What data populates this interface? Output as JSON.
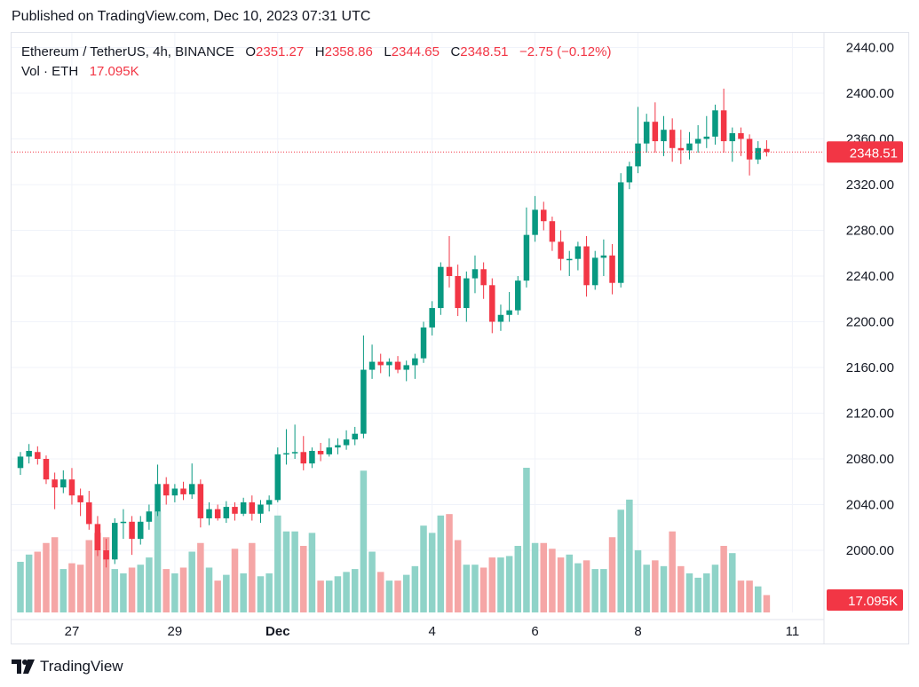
{
  "published": "Published on TradingView.com, Dec 10, 2023 07:31 UTC",
  "legend": {
    "symbol": "Ethereum / TetherUS, 4h, BINANCE",
    "o_label": "O",
    "o_value": "2351.27",
    "h_label": "H",
    "h_value": "2358.86",
    "l_label": "L",
    "l_value": "2344.65",
    "c_label": "C",
    "c_value": "2348.51",
    "change": "−2.75 (−0.12%)",
    "vol_label": "Vol · ETH",
    "vol_value": "17.095K"
  },
  "price_tag": "2348.51",
  "volume_tag": "17.095K",
  "footer": {
    "brand": "TradingView"
  },
  "colors": {
    "up": "#089981",
    "down": "#f23645",
    "up_vol": "#8fd3c8",
    "down_vol": "#f5a6a6"
  },
  "chart_data": {
    "type": "candlestick",
    "interval": "4h",
    "y_ticks": [
      "2440.00",
      "2400.00",
      "2360.00",
      "2320.00",
      "2280.00",
      "2240.00",
      "2200.00",
      "2160.00",
      "2120.00",
      "2080.00",
      "2040.00",
      "2000.00"
    ],
    "ylim": [
      1960,
      2460
    ],
    "x_ticks": [
      {
        "label": "27",
        "index": 6
      },
      {
        "label": "29",
        "index": 18
      },
      {
        "label": "Dec",
        "index": 30
      },
      {
        "label": "4",
        "index": 48
      },
      {
        "label": "6",
        "index": 60
      },
      {
        "label": "8",
        "index": 72
      },
      {
        "label": "11",
        "index": 90
      }
    ],
    "last_price": 2348.51,
    "candles": [
      {
        "o": 2072,
        "h": 2086,
        "l": 2066,
        "c": 2082,
        "v": 0.35
      },
      {
        "o": 2082,
        "h": 2093,
        "l": 2076,
        "c": 2087,
        "v": 0.4
      },
      {
        "o": 2086,
        "h": 2091,
        "l": 2075,
        "c": 2080,
        "v": 0.42
      },
      {
        "o": 2080,
        "h": 2083,
        "l": 2058,
        "c": 2062,
        "v": 0.48
      },
      {
        "o": 2062,
        "h": 2068,
        "l": 2036,
        "c": 2055,
        "v": 0.52
      },
      {
        "o": 2055,
        "h": 2070,
        "l": 2050,
        "c": 2062,
        "v": 0.3
      },
      {
        "o": 2062,
        "h": 2072,
        "l": 2040,
        "c": 2048,
        "v": 0.34
      },
      {
        "o": 2048,
        "h": 2054,
        "l": 2030,
        "c": 2042,
        "v": 0.33
      },
      {
        "o": 2042,
        "h": 2052,
        "l": 2018,
        "c": 2023,
        "v": 0.5
      },
      {
        "o": 2023,
        "h": 2030,
        "l": 1995,
        "c": 2000,
        "v": 0.55
      },
      {
        "o": 2000,
        "h": 2010,
        "l": 1985,
        "c": 1992,
        "v": 0.52
      },
      {
        "o": 1992,
        "h": 2028,
        "l": 1988,
        "c": 2024,
        "v": 0.3
      },
      {
        "o": 2024,
        "h": 2036,
        "l": 2010,
        "c": 2025,
        "v": 0.27
      },
      {
        "o": 2025,
        "h": 2030,
        "l": 1996,
        "c": 2010,
        "v": 0.31
      },
      {
        "o": 2010,
        "h": 2030,
        "l": 2005,
        "c": 2025,
        "v": 0.33
      },
      {
        "o": 2025,
        "h": 2040,
        "l": 2018,
        "c": 2034,
        "v": 0.38
      },
      {
        "o": 2034,
        "h": 2075,
        "l": 2030,
        "c": 2058,
        "v": 0.7
      },
      {
        "o": 2058,
        "h": 2064,
        "l": 2040,
        "c": 2048,
        "v": 0.3
      },
      {
        "o": 2048,
        "h": 2058,
        "l": 2042,
        "c": 2054,
        "v": 0.27
      },
      {
        "o": 2054,
        "h": 2060,
        "l": 2044,
        "c": 2049,
        "v": 0.31
      },
      {
        "o": 2049,
        "h": 2076,
        "l": 2045,
        "c": 2058,
        "v": 0.42
      },
      {
        "o": 2058,
        "h": 2062,
        "l": 2020,
        "c": 2028,
        "v": 0.48
      },
      {
        "o": 2028,
        "h": 2042,
        "l": 2022,
        "c": 2036,
        "v": 0.31
      },
      {
        "o": 2036,
        "h": 2040,
        "l": 2026,
        "c": 2028,
        "v": 0.22
      },
      {
        "o": 2028,
        "h": 2043,
        "l": 2024,
        "c": 2038,
        "v": 0.26
      },
      {
        "o": 2038,
        "h": 2042,
        "l": 2026,
        "c": 2032,
        "v": 0.44
      },
      {
        "o": 2032,
        "h": 2046,
        "l": 2030,
        "c": 2042,
        "v": 0.27
      },
      {
        "o": 2042,
        "h": 2048,
        "l": 2026,
        "c": 2032,
        "v": 0.48
      },
      {
        "o": 2032,
        "h": 2044,
        "l": 2024,
        "c": 2040,
        "v": 0.25
      },
      {
        "o": 2040,
        "h": 2048,
        "l": 2034,
        "c": 2044,
        "v": 0.27
      },
      {
        "o": 2044,
        "h": 2090,
        "l": 2042,
        "c": 2084,
        "v": 0.67
      },
      {
        "o": 2084,
        "h": 2106,
        "l": 2075,
        "c": 2085,
        "v": 0.56
      },
      {
        "o": 2085,
        "h": 2110,
        "l": 2080,
        "c": 2086,
        "v": 0.56
      },
      {
        "o": 2086,
        "h": 2100,
        "l": 2070,
        "c": 2076,
        "v": 0.46
      },
      {
        "o": 2076,
        "h": 2090,
        "l": 2072,
        "c": 2087,
        "v": 0.55
      },
      {
        "o": 2087,
        "h": 2094,
        "l": 2078,
        "c": 2084,
        "v": 0.22
      },
      {
        "o": 2084,
        "h": 2098,
        "l": 2082,
        "c": 2090,
        "v": 0.22
      },
      {
        "o": 2090,
        "h": 2098,
        "l": 2084,
        "c": 2092,
        "v": 0.25
      },
      {
        "o": 2092,
        "h": 2105,
        "l": 2088,
        "c": 2097,
        "v": 0.28
      },
      {
        "o": 2097,
        "h": 2108,
        "l": 2092,
        "c": 2102,
        "v": 0.3
      },
      {
        "o": 2102,
        "h": 2188,
        "l": 2098,
        "c": 2158,
        "v": 0.98
      },
      {
        "o": 2158,
        "h": 2180,
        "l": 2150,
        "c": 2165,
        "v": 0.42
      },
      {
        "o": 2165,
        "h": 2172,
        "l": 2155,
        "c": 2162,
        "v": 0.28
      },
      {
        "o": 2162,
        "h": 2168,
        "l": 2152,
        "c": 2165,
        "v": 0.22
      },
      {
        "o": 2165,
        "h": 2170,
        "l": 2155,
        "c": 2158,
        "v": 0.22
      },
      {
        "o": 2158,
        "h": 2166,
        "l": 2148,
        "c": 2162,
        "v": 0.26
      },
      {
        "o": 2162,
        "h": 2172,
        "l": 2150,
        "c": 2168,
        "v": 0.32
      },
      {
        "o": 2168,
        "h": 2200,
        "l": 2164,
        "c": 2195,
        "v": 0.6
      },
      {
        "o": 2195,
        "h": 2218,
        "l": 2188,
        "c": 2212,
        "v": 0.55
      },
      {
        "o": 2212,
        "h": 2252,
        "l": 2206,
        "c": 2248,
        "v": 0.67
      },
      {
        "o": 2248,
        "h": 2275,
        "l": 2230,
        "c": 2240,
        "v": 0.68
      },
      {
        "o": 2240,
        "h": 2250,
        "l": 2205,
        "c": 2212,
        "v": 0.5
      },
      {
        "o": 2212,
        "h": 2244,
        "l": 2200,
        "c": 2238,
        "v": 0.33
      },
      {
        "o": 2238,
        "h": 2258,
        "l": 2225,
        "c": 2246,
        "v": 0.33
      },
      {
        "o": 2246,
        "h": 2252,
        "l": 2220,
        "c": 2232,
        "v": 0.31
      },
      {
        "o": 2232,
        "h": 2238,
        "l": 2190,
        "c": 2200,
        "v": 0.38
      },
      {
        "o": 2200,
        "h": 2215,
        "l": 2192,
        "c": 2206,
        "v": 0.38
      },
      {
        "o": 2206,
        "h": 2226,
        "l": 2200,
        "c": 2210,
        "v": 0.39
      },
      {
        "o": 2210,
        "h": 2240,
        "l": 2206,
        "c": 2236,
        "v": 0.46
      },
      {
        "o": 2236,
        "h": 2300,
        "l": 2230,
        "c": 2276,
        "v": 1.0
      },
      {
        "o": 2276,
        "h": 2310,
        "l": 2270,
        "c": 2298,
        "v": 0.48
      },
      {
        "o": 2298,
        "h": 2305,
        "l": 2280,
        "c": 2288,
        "v": 0.48
      },
      {
        "o": 2288,
        "h": 2292,
        "l": 2262,
        "c": 2270,
        "v": 0.44
      },
      {
        "o": 2270,
        "h": 2280,
        "l": 2245,
        "c": 2255,
        "v": 0.38
      },
      {
        "o": 2255,
        "h": 2262,
        "l": 2240,
        "c": 2255,
        "v": 0.4
      },
      {
        "o": 2255,
        "h": 2270,
        "l": 2245,
        "c": 2266,
        "v": 0.34
      },
      {
        "o": 2266,
        "h": 2275,
        "l": 2222,
        "c": 2232,
        "v": 0.36
      },
      {
        "o": 2232,
        "h": 2262,
        "l": 2228,
        "c": 2256,
        "v": 0.3
      },
      {
        "o": 2256,
        "h": 2272,
        "l": 2240,
        "c": 2258,
        "v": 0.3
      },
      {
        "o": 2258,
        "h": 2268,
        "l": 2224,
        "c": 2234,
        "v": 0.52
      },
      {
        "o": 2234,
        "h": 2330,
        "l": 2230,
        "c": 2322,
        "v": 0.71
      },
      {
        "o": 2322,
        "h": 2340,
        "l": 2316,
        "c": 2336,
        "v": 0.78
      },
      {
        "o": 2336,
        "h": 2388,
        "l": 2330,
        "c": 2356,
        "v": 0.43
      },
      {
        "o": 2356,
        "h": 2382,
        "l": 2348,
        "c": 2375,
        "v": 0.33
      },
      {
        "o": 2375,
        "h": 2392,
        "l": 2348,
        "c": 2358,
        "v": 0.36
      },
      {
        "o": 2358,
        "h": 2380,
        "l": 2345,
        "c": 2368,
        "v": 0.32
      },
      {
        "o": 2368,
        "h": 2378,
        "l": 2340,
        "c": 2352,
        "v": 0.56
      },
      {
        "o": 2352,
        "h": 2368,
        "l": 2338,
        "c": 2350,
        "v": 0.32
      },
      {
        "o": 2350,
        "h": 2366,
        "l": 2342,
        "c": 2356,
        "v": 0.27
      },
      {
        "o": 2356,
        "h": 2372,
        "l": 2348,
        "c": 2360,
        "v": 0.24
      },
      {
        "o": 2360,
        "h": 2380,
        "l": 2352,
        "c": 2362,
        "v": 0.27
      },
      {
        "o": 2362,
        "h": 2390,
        "l": 2355,
        "c": 2385,
        "v": 0.33
      },
      {
        "o": 2385,
        "h": 2404,
        "l": 2348,
        "c": 2358,
        "v": 0.46
      },
      {
        "o": 2358,
        "h": 2370,
        "l": 2340,
        "c": 2365,
        "v": 0.41
      },
      {
        "o": 2365,
        "h": 2370,
        "l": 2345,
        "c": 2360,
        "v": 0.22
      },
      {
        "o": 2360,
        "h": 2364,
        "l": 2328,
        "c": 2342,
        "v": 0.22
      },
      {
        "o": 2342,
        "h": 2358,
        "l": 2338,
        "c": 2352,
        "v": 0.18
      },
      {
        "o": 2351.27,
        "h": 2358.86,
        "l": 2344.65,
        "c": 2348.51,
        "v": 0.12
      }
    ]
  }
}
